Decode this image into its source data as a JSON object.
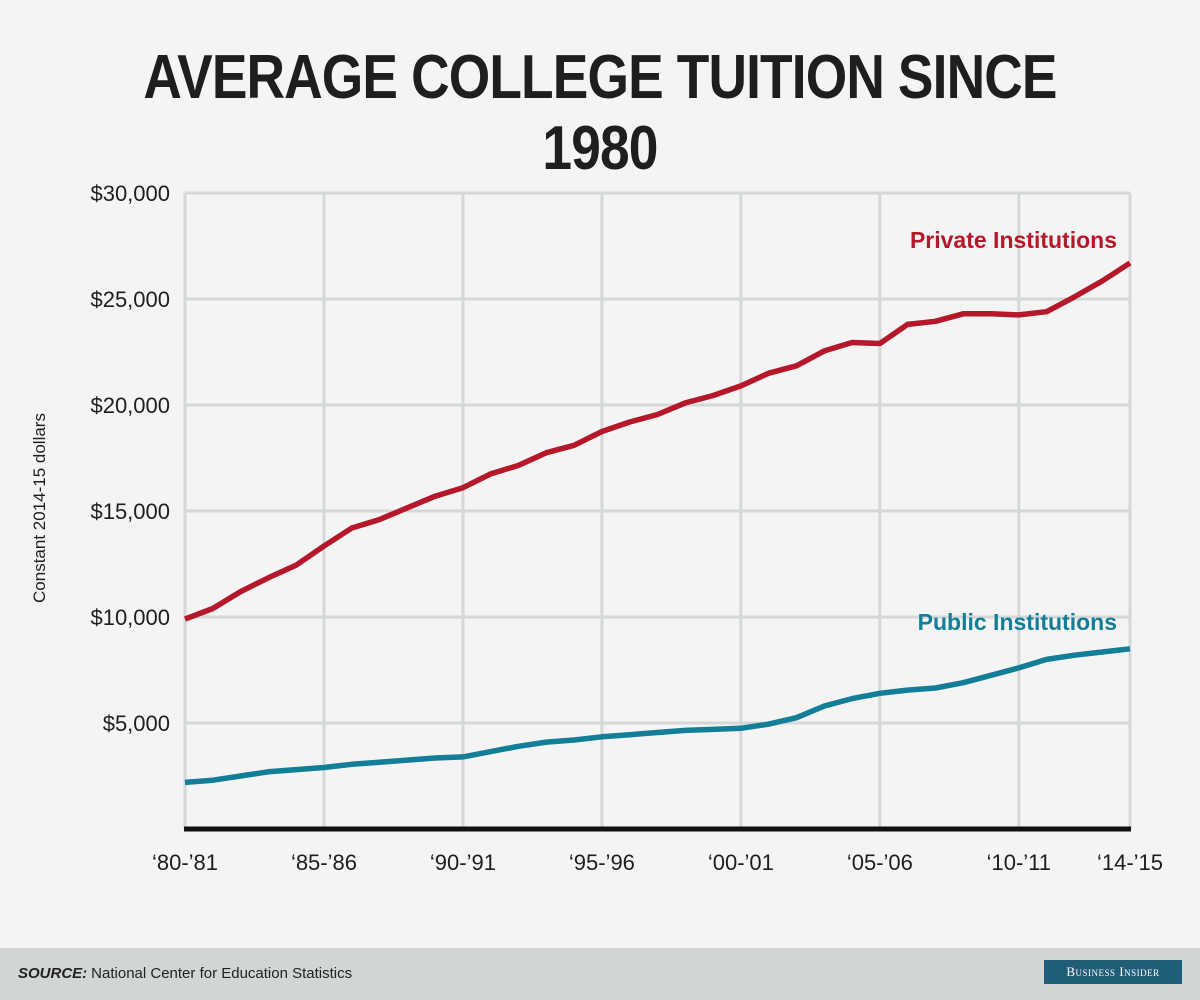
{
  "title": "AVERAGE COLLEGE TUITION SINCE 1980",
  "footer": {
    "source_label": "SOURCE:",
    "source_text": "National Center for Education Statistics",
    "logo_text": "Business Insider"
  },
  "colors": {
    "private": "#b5182a",
    "public": "#127e97",
    "grid": "#d5d8d9",
    "axis": "#111111",
    "logo_bg": "#1f5d78"
  },
  "chart_data": {
    "type": "line",
    "title": "AVERAGE COLLEGE TUITION SINCE 1980",
    "xlabel": "",
    "ylabel": "Constant 2014-15 dollars",
    "ylim": [
      0,
      30000
    ],
    "yticks": [
      5000,
      10000,
      15000,
      20000,
      25000,
      30000
    ],
    "ytick_labels": [
      "$5,000",
      "$10,000",
      "$15,000",
      "$20,000",
      "$25,000",
      "$30,000"
    ],
    "xtick_labels": [
      "‘80-’81",
      "‘85-’86",
      "‘90-’91",
      "‘95-’96",
      "‘00-’01",
      "‘05-’06",
      "‘10-’11",
      "‘14-’15"
    ],
    "xtick_index": [
      0,
      5,
      10,
      15,
      20,
      25,
      30,
      34
    ],
    "grid": true,
    "x": [
      "1980-81",
      "1981-82",
      "1982-83",
      "1983-84",
      "1984-85",
      "1985-86",
      "1986-87",
      "1987-88",
      "1988-89",
      "1989-90",
      "1990-91",
      "1991-92",
      "1992-93",
      "1993-94",
      "1994-95",
      "1995-96",
      "1996-97",
      "1997-98",
      "1998-99",
      "1999-00",
      "2000-01",
      "2001-02",
      "2002-03",
      "2003-04",
      "2004-05",
      "2005-06",
      "2006-07",
      "2007-08",
      "2008-09",
      "2009-10",
      "2010-11",
      "2011-12",
      "2012-13",
      "2013-14",
      "2014-15"
    ],
    "series": [
      {
        "name": "Private Institutions",
        "values": [
          9900,
          10400,
          11200,
          11850,
          12450,
          13350,
          14200,
          14600,
          15150,
          15700,
          16100,
          16750,
          17150,
          17750,
          18100,
          18750,
          19200,
          19550,
          20100,
          20450,
          20900,
          21500,
          21850,
          22550,
          22950,
          22900,
          23800,
          23950,
          24300,
          24300,
          24250,
          24400,
          25100,
          25850,
          26700
        ]
      },
      {
        "name": "Public Institutions",
        "values": [
          2200,
          2300,
          2500,
          2700,
          2800,
          2900,
          3050,
          3150,
          3250,
          3350,
          3400,
          3650,
          3900,
          4100,
          4200,
          4350,
          4450,
          4550,
          4650,
          4700,
          4750,
          4950,
          5250,
          5800,
          6150,
          6400,
          6550,
          6650,
          6900,
          7250,
          7600,
          8000,
          8200,
          8350,
          8500
        ]
      }
    ]
  }
}
